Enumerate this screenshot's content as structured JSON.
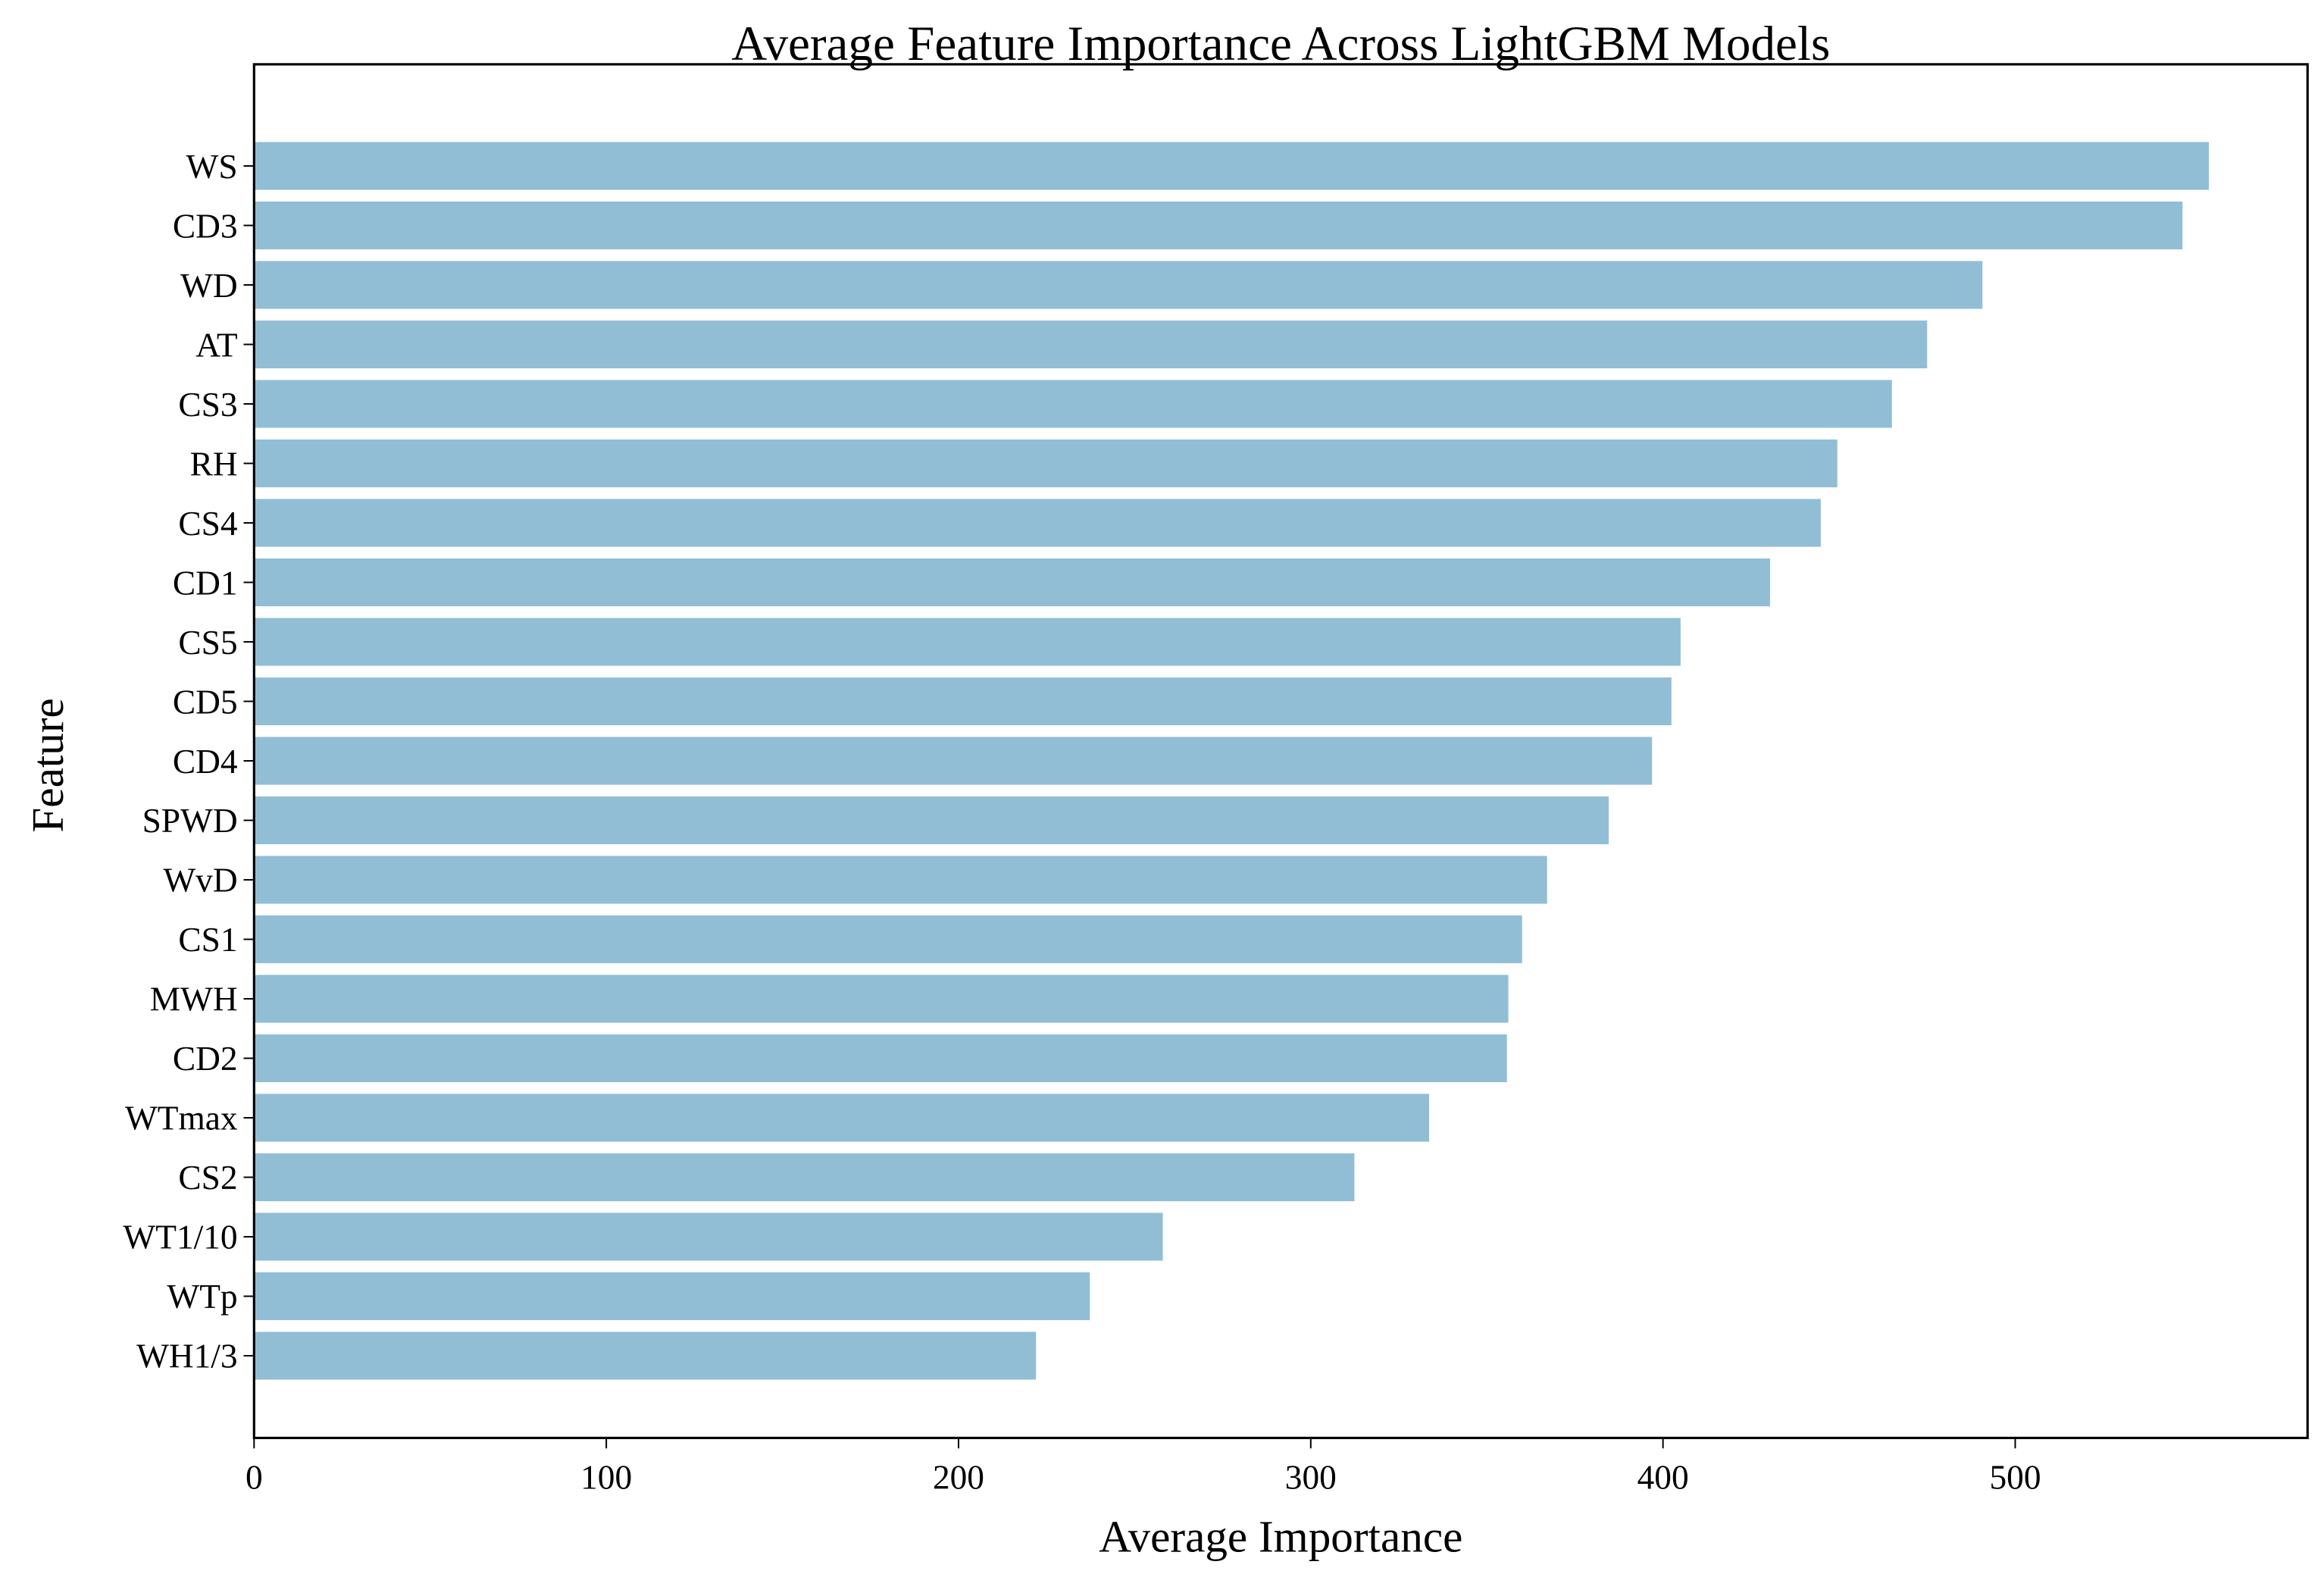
{
  "chart_data": {
    "type": "bar",
    "orientation": "horizontal",
    "title": "Average Feature Importance Across LightGBM Models",
    "xlabel": "Average Importance",
    "ylabel": "Feature",
    "xlim": [
      0,
      583
    ],
    "xticks": [
      0,
      100,
      200,
      300,
      400,
      500
    ],
    "grid": false,
    "bar_color": "#92BED5",
    "categories": [
      "WS",
      "CD3",
      "WD",
      "AT",
      "CS3",
      "RH",
      "CS4",
      "CD1",
      "CS5",
      "CD5",
      "CD4",
      "SPWD",
      "WvD",
      "CS1",
      "MWH",
      "CD2",
      "WTmax",
      "CS2",
      "WT1/10",
      "WTp",
      "WH1/3"
    ],
    "values": [
      555,
      547.5,
      490.7,
      475,
      465,
      449.5,
      444.8,
      430.4,
      405,
      402.4,
      396.9,
      384.6,
      367.1,
      360,
      356.1,
      355.7,
      333.6,
      312.4,
      258,
      237.3,
      222
    ]
  }
}
